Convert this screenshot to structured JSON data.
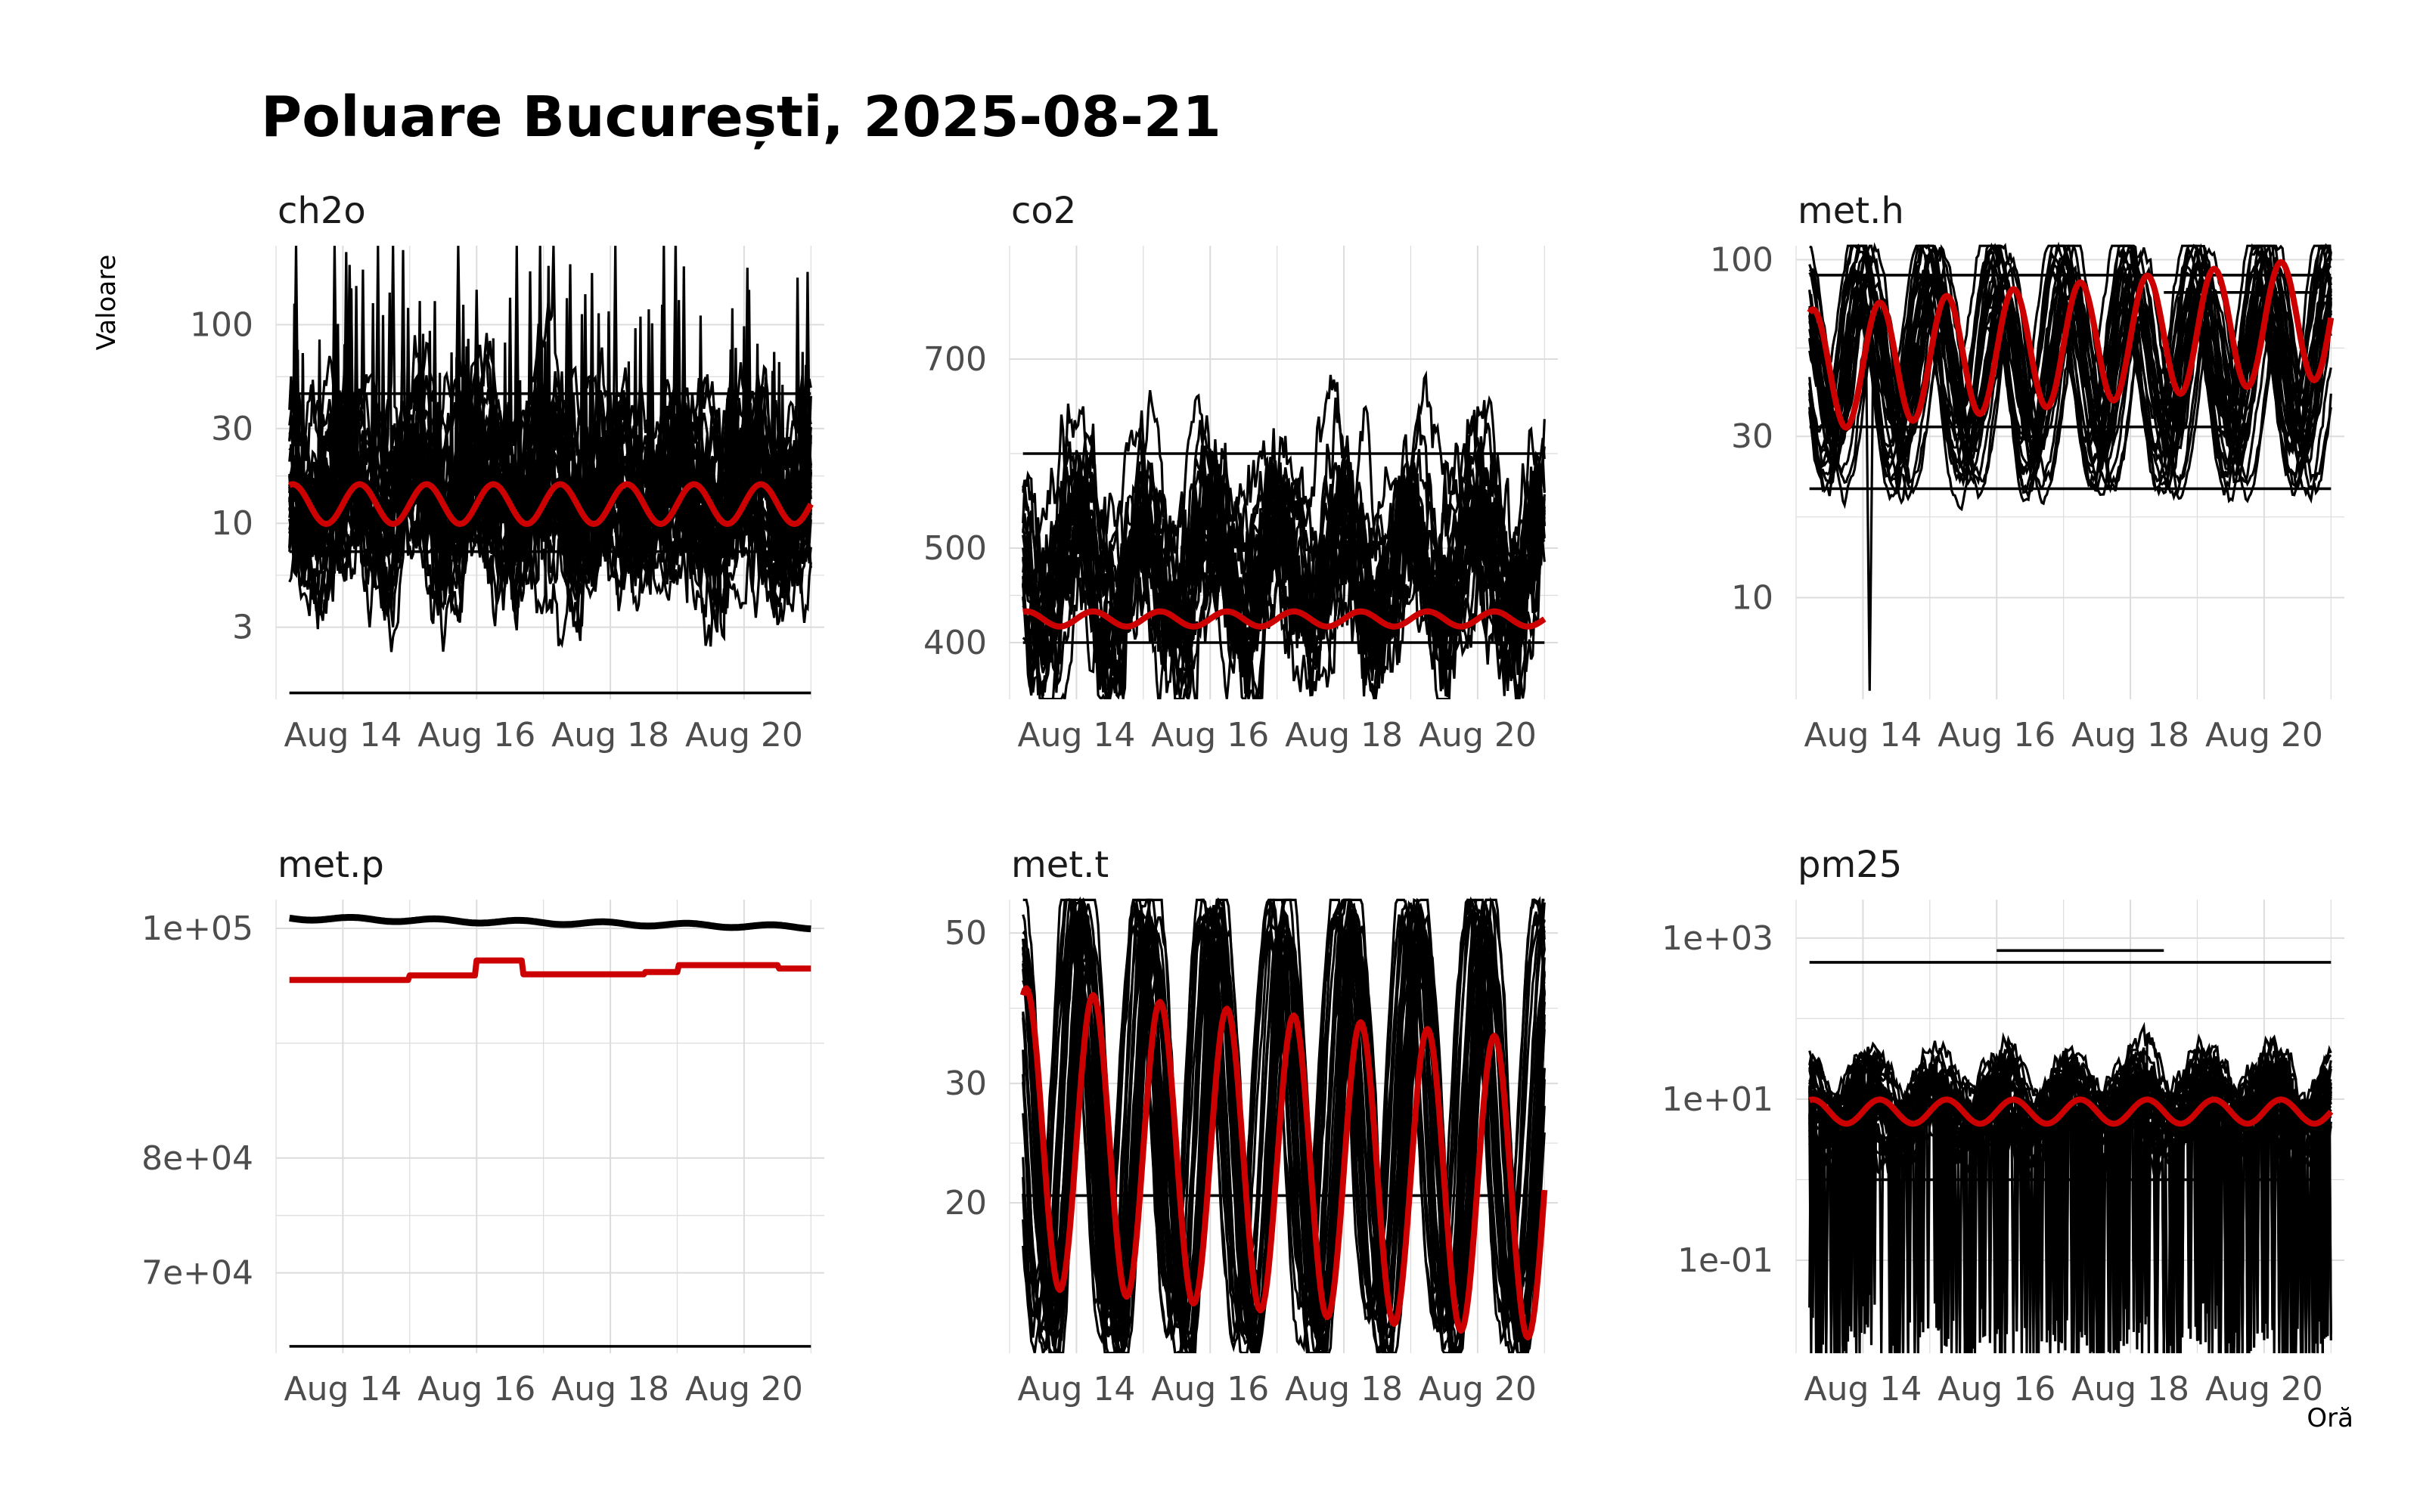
{
  "title": "Poluare București, 2025-08-21",
  "ylabel": "Valoare",
  "xlabel": "Oră",
  "colors": {
    "sensor": "#000000",
    "mean": "#cc0000",
    "grid": "#dcdcdc"
  },
  "chart_data": [
    {
      "type": "line",
      "name": "ch2o",
      "scale": "log",
      "ylim": [
        1.3,
        250
      ],
      "xlim": [
        13.0,
        21.2
      ],
      "yticks": [
        {
          "v": 3,
          "label": "3"
        },
        {
          "v": 10,
          "label": "10"
        },
        {
          "v": 30,
          "label": "30"
        },
        {
          "v": 100,
          "label": "100"
        }
      ],
      "xticks": [
        {
          "v": 14,
          "label": "Aug 14"
        },
        {
          "v": 16,
          "label": "Aug 16"
        },
        {
          "v": 18,
          "label": "Aug 18"
        },
        {
          "v": 20,
          "label": "Aug 20"
        }
      ],
      "mean": {
        "base": 12.5,
        "amp": 0.1,
        "trend": 0,
        "noise": 0.0,
        "period": 1
      },
      "sensors": {
        "count": 30,
        "center": 13,
        "spread": 0.45,
        "amp": 0.15,
        "noise": 0.45,
        "spike_prob": 0.01,
        "spike_mult": 8
      },
      "flat_lines": [
        {
          "y": 45,
          "x0": 13.2,
          "x1": 21.0
        },
        {
          "y": 7.2,
          "x0": 13.2,
          "x1": 21.0
        },
        {
          "y": 1.4,
          "x0": 13.2,
          "x1": 21.0
        }
      ],
      "spikes": [
        {
          "x": 14.1,
          "y": 200
        },
        {
          "x": 14.9,
          "y": 130
        },
        {
          "x": 16.0,
          "y": 150
        }
      ]
    },
    {
      "type": "line",
      "name": "co2",
      "scale": "linear",
      "ylim": [
        340,
        820
      ],
      "xlim": [
        13.0,
        21.2
      ],
      "yticks": [
        {
          "v": 400,
          "label": "400"
        },
        {
          "v": 500,
          "label": "500"
        },
        {
          "v": 700,
          "label": "700"
        }
      ],
      "xticks": [
        {
          "v": 14,
          "label": "Aug 14"
        },
        {
          "v": 16,
          "label": "Aug 16"
        },
        {
          "v": 18,
          "label": "Aug 18"
        },
        {
          "v": 20,
          "label": "Aug 20"
        }
      ],
      "mean": {
        "base": 425,
        "amp": 8,
        "trend": 0,
        "noise": 0,
        "period": 1
      },
      "sensors": {
        "count": 24,
        "center": 470,
        "spread": 50,
        "amp": 60,
        "noise": 30,
        "spike_prob": 0.0,
        "spike_mult": 1
      },
      "flat_lines": [
        {
          "y": 600,
          "x0": 13.2,
          "x1": 21.0
        },
        {
          "y": 400,
          "x0": 13.2,
          "x1": 21.0
        }
      ],
      "spikes": []
    },
    {
      "type": "line",
      "name": "met.h",
      "scale": "log",
      "ylim": [
        5,
        110
      ],
      "xlim": [
        13.0,
        21.2
      ],
      "yticks": [
        {
          "v": 10,
          "label": "10"
        },
        {
          "v": 30,
          "label": "30"
        },
        {
          "v": 100,
          "label": "100"
        }
      ],
      "xticks": [
        {
          "v": 14,
          "label": "Aug 14"
        },
        {
          "v": 16,
          "label": "Aug 16"
        },
        {
          "v": 18,
          "label": "Aug 18"
        },
        {
          "v": 20,
          "label": "Aug 20"
        }
      ],
      "mean": {
        "base": 47,
        "amp": 0.18,
        "trend": 0.02,
        "noise": 0,
        "period": 1
      },
      "sensors": {
        "count": 28,
        "center": 48,
        "spread": 0.22,
        "amp": 0.25,
        "noise": 0.06,
        "spike_prob": 0.0,
        "spike_mult": 1
      },
      "flat_lines": [
        {
          "y": 90,
          "x0": 13.2,
          "x1": 21.0
        },
        {
          "y": 32,
          "x0": 13.2,
          "x1": 19.5
        },
        {
          "y": 21,
          "x0": 13.2,
          "x1": 21.0
        },
        {
          "y": 80,
          "x0": 18.5,
          "x1": 20.8
        }
      ],
      "spikes": [
        {
          "x": 14.1,
          "y": 5.3,
          "down": true
        }
      ]
    },
    {
      "type": "line",
      "name": "met.p",
      "scale": "linear",
      "ylim": [
        63000,
        102500
      ],
      "xlim": [
        13.0,
        21.2
      ],
      "yticks": [
        {
          "v": 70000,
          "label": "7e+04"
        },
        {
          "v": 80000,
          "label": "8e+04"
        },
        {
          "v": 100000,
          "label": "1e+05"
        }
      ],
      "xticks": [
        {
          "v": 14,
          "label": "Aug 14"
        },
        {
          "v": 16,
          "label": "Aug 16"
        },
        {
          "v": 18,
          "label": "Aug 18"
        },
        {
          "v": 20,
          "label": "Aug 20"
        }
      ],
      "mean": {
        "base": 95700,
        "amp": 0,
        "trend": 0,
        "noise": 0,
        "period": 1,
        "steps": [
          [
            13.2,
            95500
          ],
          [
            15.0,
            95900
          ],
          [
            16.0,
            97200
          ],
          [
            16.7,
            96000
          ],
          [
            18.5,
            96200
          ],
          [
            19.0,
            96800
          ],
          [
            20.5,
            96500
          ],
          [
            21.0,
            95600
          ]
        ]
      },
      "sensors": {
        "count": 0,
        "center": 0,
        "spread": 0,
        "amp": 0,
        "noise": 0,
        "spike_prob": 0,
        "spike_mult": 1
      },
      "thick_line": {
        "y0": 100900,
        "y1": 100100
      },
      "flat_lines": [
        {
          "y": 63600,
          "x0": 13.2,
          "x1": 21.0
        }
      ],
      "spikes": []
    },
    {
      "type": "line",
      "name": "met.t",
      "scale": "log",
      "ylim": [
        12,
        56
      ],
      "xlim": [
        13.0,
        21.2
      ],
      "yticks": [
        {
          "v": 20,
          "label": "20"
        },
        {
          "v": 30,
          "label": "30"
        },
        {
          "v": 50,
          "label": "50"
        }
      ],
      "xticks": [
        {
          "v": 14,
          "label": "Aug 14"
        },
        {
          "v": 16,
          "label": "Aug 16"
        },
        {
          "v": 18,
          "label": "Aug 18"
        },
        {
          "v": 20,
          "label": "Aug 20"
        }
      ],
      "mean": {
        "base": 25,
        "amp": 0.22,
        "trend": -0.01,
        "noise": 0,
        "period": 1
      },
      "sensors": {
        "count": 28,
        "center": 25,
        "spread": 0.1,
        "amp": 0.3,
        "noise": 0.05,
        "spike_prob": 0.0,
        "spike_mult": 1
      },
      "flat_lines": [
        {
          "y": 20.5,
          "x0": 13.2,
          "x1": 21.0
        }
      ],
      "spikes": []
    },
    {
      "type": "line",
      "name": "pm25",
      "scale": "log",
      "ylim": [
        0.007,
        3000
      ],
      "xlim": [
        13.0,
        21.2
      ],
      "yticks": [
        {
          "v": 0.1,
          "label": "1e-01"
        },
        {
          "v": 10,
          "label": "1e+01"
        },
        {
          "v": 1000,
          "label": "1e+03"
        }
      ],
      "xticks": [
        {
          "v": 14,
          "label": "Aug 14"
        },
        {
          "v": 16,
          "label": "Aug 16"
        },
        {
          "v": 18,
          "label": "Aug 18"
        },
        {
          "v": 20,
          "label": "Aug 20"
        }
      ],
      "mean": {
        "base": 7,
        "amp": 0.15,
        "trend": 0,
        "noise": 0,
        "period": 1
      },
      "sensors": {
        "count": 34,
        "center": 8,
        "spread": 0.6,
        "amp": 0.3,
        "noise": 0.35,
        "spike_prob": 0.03,
        "spike_mult": 0.001
      },
      "flat_lines": [
        {
          "y": 500,
          "x0": 13.2,
          "x1": 21.0
        },
        {
          "y": 700,
          "x0": 16.0,
          "x1": 18.5
        },
        {
          "y": 1,
          "x0": 13.2,
          "x1": 21.0
        }
      ],
      "spikes": []
    }
  ]
}
